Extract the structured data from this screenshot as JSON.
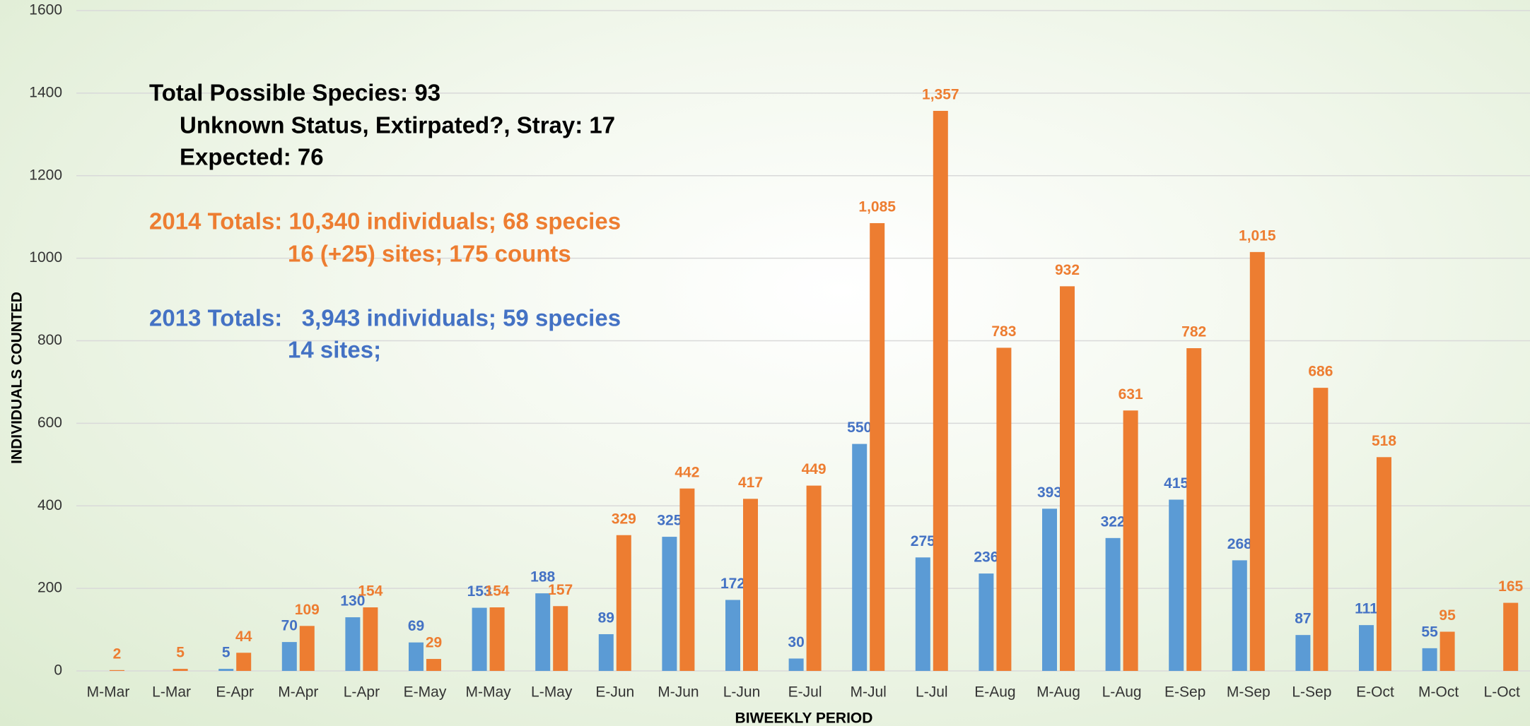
{
  "chart_data": {
    "type": "bar",
    "x_label": "BIWEEKLY PERIOD",
    "y_label": "INDIVIDUALS COUNTED",
    "categories": [
      "M-Mar",
      "L-Mar",
      "E-Apr",
      "M-Apr",
      "L-Apr",
      "E-May",
      "M-May",
      "L-May",
      "E-Jun",
      "M-Jun",
      "L-Jun",
      "E-Jul",
      "M-Jul",
      "L-Jul",
      "E-Aug",
      "M-Aug",
      "L-Aug",
      "E-Sep",
      "M-Sep",
      "L-Sep",
      "E-Oct",
      "M-Oct",
      "L-Oct"
    ],
    "series": [
      {
        "color": "#5b9bd5",
        "label_color": "#4472c4",
        "values": [
          null,
          null,
          5,
          70,
          130,
          69,
          153,
          188,
          89,
          325,
          172,
          30,
          550,
          275,
          236,
          393,
          322,
          415,
          268,
          87,
          111,
          55,
          null
        ]
      },
      {
        "color": "#ed7d31",
        "label_color": "#ed7d31",
        "values": [
          2,
          5,
          44,
          109,
          154,
          29,
          154,
          157,
          329,
          442,
          417,
          449,
          1085,
          1357,
          783,
          932,
          631,
          782,
          1015,
          686,
          518,
          95,
          165
        ],
        "value_labels": [
          "2",
          "5",
          "44",
          "109",
          "154",
          "29",
          "154",
          "157",
          "329",
          "442",
          "417",
          "449",
          "1,085",
          "1,357",
          "783",
          "932",
          "631",
          "782",
          "1,015",
          "686",
          "518",
          "95",
          "165"
        ]
      }
    ],
    "ylim": [
      0,
      1600
    ],
    "yticks": [
      0,
      200,
      400,
      600,
      800,
      1000,
      1200,
      1400,
      1600
    ],
    "grid": true,
    "annotations": [
      {
        "text": "Total Possible Species: 93",
        "color": "#000000"
      },
      {
        "text": "Unknown Status, Extirpated?, Stray: 17",
        "color": "#000000"
      },
      {
        "text": "Expected: 76",
        "color": "#000000"
      },
      {
        "text": "2014 Totals: 10,340 individuals; 68 species",
        "color": "#ed7d31"
      },
      {
        "text": "16 (+25) sites; 175 counts",
        "color": "#ed7d31"
      },
      {
        "text": "2013 Totals:   3,943 individuals; 59 species",
        "color": "#4472c4"
      },
      {
        "text": "14 sites;",
        "color": "#4472c4"
      }
    ]
  }
}
